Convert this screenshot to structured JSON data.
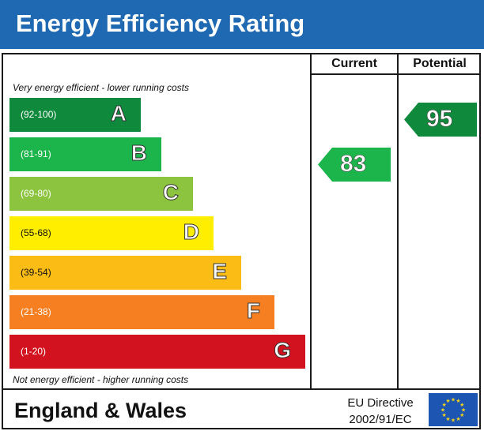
{
  "title": "Energy Efficiency Rating",
  "columns": {
    "current": "Current",
    "potential": "Potential"
  },
  "captions": {
    "top": "Very energy efficient - lower running costs",
    "bottom": "Not energy efficient - higher running costs"
  },
  "footer": {
    "region": "England & Wales",
    "directive_line1": "EU Directive",
    "directive_line2": "2002/91/EC"
  },
  "colors": {
    "header": "#1f69b3",
    "eu_flag": "#1d55b3",
    "eu_stars": "#f2d21b"
  },
  "chart_data": {
    "type": "bar",
    "categories": [
      "A",
      "B",
      "C",
      "D",
      "E",
      "F",
      "G"
    ],
    "bands": [
      {
        "letter": "A",
        "range": "(92-100)",
        "min": 92,
        "max": 100,
        "color": "#0f8a3c"
      },
      {
        "letter": "B",
        "range": "(81-91)",
        "min": 81,
        "max": 91,
        "color": "#1bb54b"
      },
      {
        "letter": "C",
        "range": "(69-80)",
        "min": 69,
        "max": 80,
        "color": "#8cc43f"
      },
      {
        "letter": "D",
        "range": "(55-68)",
        "min": 55,
        "max": 68,
        "color": "#ffee00"
      },
      {
        "letter": "E",
        "range": "(39-54)",
        "min": 39,
        "max": 54,
        "color": "#fbbc16"
      },
      {
        "letter": "F",
        "range": "(21-38)",
        "min": 21,
        "max": 38,
        "color": "#f57f21"
      },
      {
        "letter": "G",
        "range": "(1-20)",
        "min": 1,
        "max": 20,
        "color": "#d2121f"
      }
    ],
    "current": {
      "value": 83,
      "band": "B"
    },
    "potential": {
      "value": 95,
      "band": "A"
    }
  }
}
